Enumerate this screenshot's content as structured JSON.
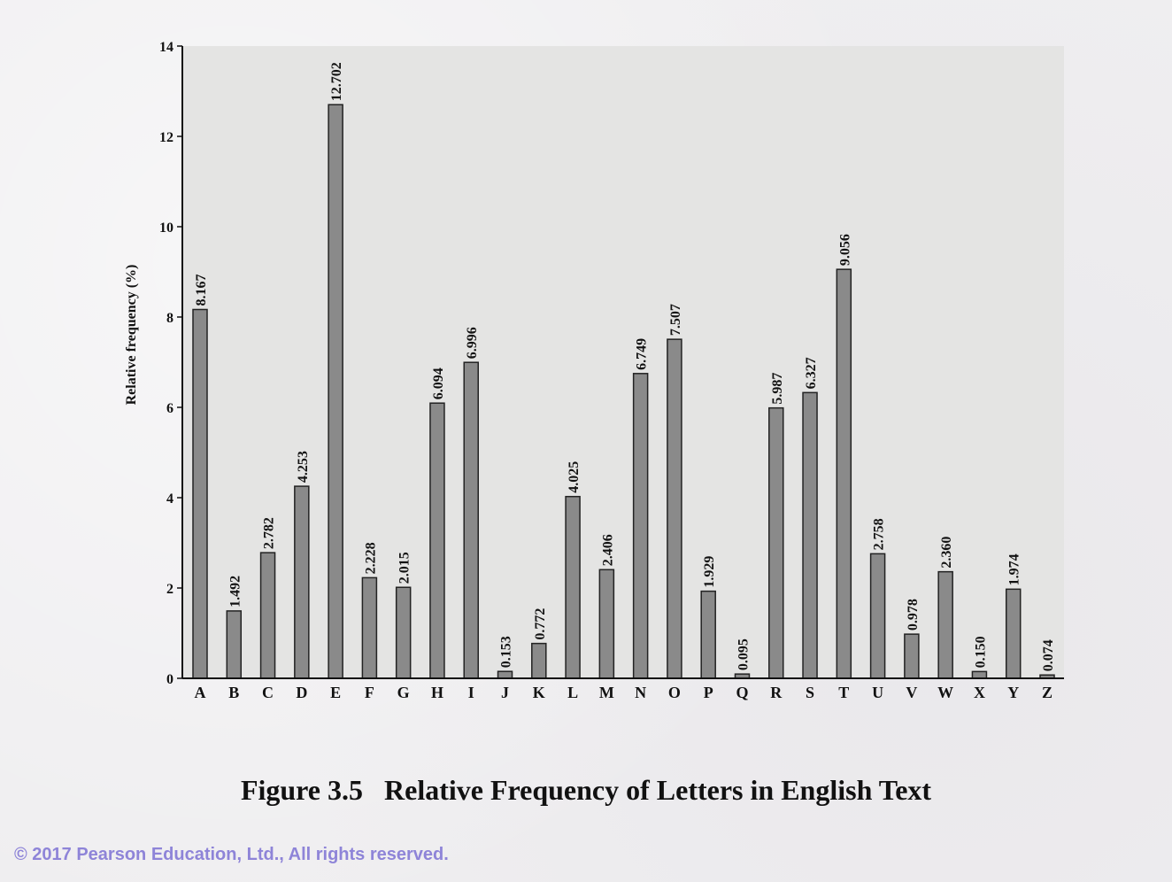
{
  "chart_data": {
    "type": "bar",
    "title": "",
    "xlabel": "",
    "ylabel": "Relative frequency (%)",
    "ylim": [
      0,
      14
    ],
    "yticks": [
      "0",
      "2",
      "4",
      "6",
      "8",
      "10",
      "12",
      "14"
    ],
    "grid": false,
    "plot_background": "#e4e4e3",
    "bar_color": "#8a8a8a",
    "bar_outline": "#222222",
    "categories": [
      "A",
      "B",
      "C",
      "D",
      "E",
      "F",
      "G",
      "H",
      "I",
      "J",
      "K",
      "L",
      "M",
      "N",
      "O",
      "P",
      "Q",
      "R",
      "S",
      "T",
      "U",
      "V",
      "W",
      "X",
      "Y",
      "Z"
    ],
    "values": [
      8.167,
      1.492,
      2.782,
      4.253,
      12.702,
      2.228,
      2.015,
      6.094,
      6.996,
      0.153,
      0.772,
      4.025,
      2.406,
      6.749,
      7.507,
      1.929,
      0.095,
      5.987,
      6.327,
      9.056,
      2.758,
      0.978,
      2.36,
      0.15,
      1.974,
      0.074
    ],
    "data_labels": [
      "8.167",
      "1.492",
      "2.782",
      "4.253",
      "12.702",
      "2.228",
      "2.015",
      "6.094",
      "6.996",
      "0.153",
      "0.772",
      "4.025",
      "2.406",
      "6.749",
      "7.507",
      "1.929",
      "0.095",
      "5.987",
      "6.327",
      "9.056",
      "2.758",
      "0.978",
      "2.360",
      "0.150",
      "1.974",
      "0.074"
    ]
  },
  "caption": "Figure 3.5   Relative Frequency of Letters in English Text",
  "copyright": "© 2017 Pearson Education, Ltd., All rights reserved."
}
